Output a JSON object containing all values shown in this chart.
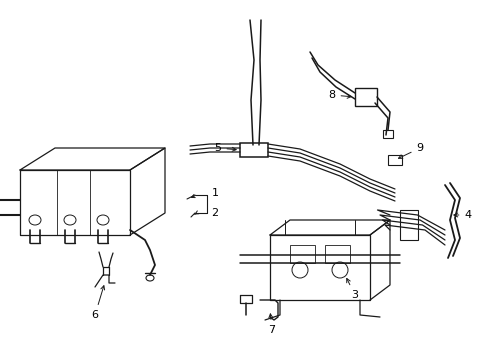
{
  "background_color": "#ffffff",
  "line_color": "#1a1a1a",
  "line_width": 0.9,
  "text_color": "#000000",
  "fig_width": 4.89,
  "fig_height": 3.6,
  "dpi": 100,
  "xlim": [
    0,
    489
  ],
  "ylim": [
    0,
    360
  ]
}
